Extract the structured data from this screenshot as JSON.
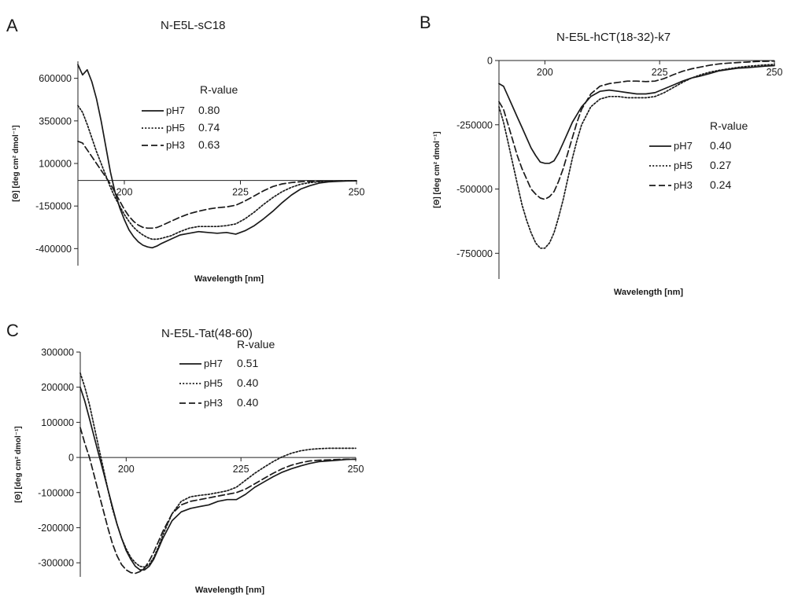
{
  "chart_data": [
    {
      "type": "line",
      "panel_letter": "A",
      "title": "N-E5L-sC18",
      "xlabel": "Wavelength [nm]",
      "ylabel": "[Θ] [deg cm² dmol⁻¹]",
      "xlim": [
        190,
        250
      ],
      "ylim": [
        -500000,
        700000
      ],
      "xticks": [
        200,
        225,
        250
      ],
      "yticks": [
        -400000,
        -150000,
        100000,
        350000,
        600000
      ],
      "ytick_labels": [
        "-400000",
        "-150000",
        "100000",
        "350000",
        "600000"
      ],
      "legend_title": "R-value",
      "series": [
        {
          "name": "pH7",
          "style": "solid",
          "r_value": "0.80",
          "x": [
            190,
            191,
            192,
            193,
            194,
            195,
            196,
            197,
            198,
            199,
            200,
            201,
            202,
            203,
            204,
            205,
            206,
            207,
            208,
            210,
            212,
            214,
            216,
            218,
            220,
            222,
            224,
            226,
            228,
            230,
            232,
            234,
            236,
            238,
            240,
            242,
            244,
            246,
            248,
            250
          ],
          "y": [
            680000,
            620000,
            650000,
            580000,
            480000,
            350000,
            200000,
            50000,
            -70000,
            -160000,
            -230000,
            -290000,
            -330000,
            -360000,
            -380000,
            -390000,
            -395000,
            -385000,
            -370000,
            -345000,
            -320000,
            -310000,
            -300000,
            -305000,
            -310000,
            -305000,
            -315000,
            -295000,
            -265000,
            -225000,
            -180000,
            -130000,
            -85000,
            -50000,
            -30000,
            -15000,
            -8000,
            -5000,
            -3000,
            -2000
          ]
        },
        {
          "name": "pH5",
          "style": "dotted",
          "r_value": "0.74",
          "x": [
            190,
            191,
            192,
            193,
            194,
            195,
            196,
            197,
            198,
            199,
            200,
            201,
            202,
            203,
            204,
            205,
            206,
            207,
            208,
            210,
            212,
            214,
            216,
            218,
            220,
            222,
            224,
            226,
            228,
            230,
            232,
            234,
            236,
            238,
            240,
            242,
            244,
            246,
            248,
            250
          ],
          "y": [
            440000,
            400000,
            330000,
            250000,
            170000,
            100000,
            30000,
            -40000,
            -100000,
            -150000,
            -200000,
            -240000,
            -275000,
            -300000,
            -320000,
            -335000,
            -345000,
            -345000,
            -340000,
            -325000,
            -300000,
            -280000,
            -270000,
            -270000,
            -270000,
            -265000,
            -255000,
            -225000,
            -185000,
            -140000,
            -100000,
            -65000,
            -40000,
            -22000,
            -12000,
            -7000,
            -4000,
            -3000,
            -2000,
            -1500
          ]
        },
        {
          "name": "pH3",
          "style": "dashed",
          "r_value": "0.63",
          "x": [
            190,
            191,
            192,
            193,
            194,
            195,
            196,
            197,
            198,
            199,
            200,
            201,
            202,
            203,
            204,
            205,
            206,
            207,
            208,
            210,
            212,
            214,
            216,
            218,
            220,
            222,
            224,
            226,
            228,
            230,
            232,
            234,
            236,
            238,
            240,
            242,
            244,
            246,
            248,
            250
          ],
          "y": [
            230000,
            220000,
            180000,
            140000,
            100000,
            60000,
            20000,
            -20000,
            -70000,
            -120000,
            -170000,
            -210000,
            -240000,
            -262000,
            -275000,
            -280000,
            -280000,
            -276000,
            -265000,
            -240000,
            -215000,
            -195000,
            -180000,
            -168000,
            -160000,
            -155000,
            -145000,
            -120000,
            -90000,
            -60000,
            -35000,
            -20000,
            -12000,
            -7000,
            -5000,
            -4000,
            -3000,
            -2500,
            -2000,
            -1500
          ]
        }
      ]
    },
    {
      "type": "line",
      "panel_letter": "B",
      "title": "N-E5L-hCT(18-32)-k7",
      "xlabel": "Wavelength [nm]",
      "ylabel": "[Θ] [deg cm² dmol⁻¹]",
      "xlim": [
        190,
        250
      ],
      "ylim": [
        -850000,
        0
      ],
      "xticks": [
        200,
        225,
        250
      ],
      "yticks": [
        0,
        -250000,
        -500000,
        -750000
      ],
      "ytick_labels": [
        "0",
        "-250000",
        "-500000",
        "-750000"
      ],
      "legend_title": "R-value",
      "series": [
        {
          "name": "pH7",
          "style": "solid",
          "r_value": "0.40",
          "x": [
            190,
            191,
            192,
            193,
            194,
            195,
            196,
            197,
            198,
            199,
            200,
            201,
            202,
            203,
            204,
            205,
            206,
            207,
            208,
            210,
            212,
            214,
            216,
            218,
            220,
            222,
            224,
            226,
            228,
            230,
            232,
            234,
            236,
            238,
            240,
            242,
            244,
            246,
            248,
            250
          ],
          "y": [
            -90000,
            -100000,
            -140000,
            -180000,
            -220000,
            -260000,
            -300000,
            -340000,
            -370000,
            -395000,
            -400000,
            -400000,
            -390000,
            -360000,
            -320000,
            -280000,
            -240000,
            -210000,
            -180000,
            -140000,
            -120000,
            -115000,
            -120000,
            -125000,
            -130000,
            -130000,
            -125000,
            -110000,
            -95000,
            -80000,
            -68000,
            -60000,
            -50000,
            -40000,
            -35000,
            -30000,
            -28000,
            -25000,
            -22000,
            -20000
          ]
        },
        {
          "name": "pH5",
          "style": "dotted",
          "r_value": "0.27",
          "x": [
            190,
            191,
            192,
            193,
            194,
            195,
            196,
            197,
            198,
            199,
            200,
            201,
            202,
            203,
            204,
            205,
            206,
            207,
            208,
            210,
            212,
            214,
            216,
            218,
            220,
            222,
            224,
            226,
            228,
            230,
            232,
            234,
            236,
            238,
            240,
            242,
            244,
            246,
            248,
            250
          ],
          "y": [
            -180000,
            -240000,
            -320000,
            -400000,
            -480000,
            -560000,
            -620000,
            -670000,
            -710000,
            -730000,
            -730000,
            -710000,
            -670000,
            -610000,
            -540000,
            -460000,
            -380000,
            -310000,
            -250000,
            -180000,
            -150000,
            -140000,
            -140000,
            -145000,
            -145000,
            -145000,
            -140000,
            -125000,
            -105000,
            -85000,
            -68000,
            -55000,
            -45000,
            -38000,
            -32000,
            -27000,
            -23000,
            -20000,
            -17000,
            -15000
          ]
        },
        {
          "name": "pH3",
          "style": "dashed",
          "r_value": "0.24",
          "x": [
            190,
            191,
            192,
            193,
            194,
            195,
            196,
            197,
            198,
            199,
            200,
            201,
            202,
            203,
            204,
            205,
            206,
            207,
            208,
            210,
            212,
            214,
            216,
            218,
            220,
            222,
            224,
            226,
            228,
            230,
            232,
            234,
            236,
            238,
            240,
            242,
            244,
            246,
            248,
            250
          ],
          "y": [
            -160000,
            -190000,
            -250000,
            -310000,
            -370000,
            -420000,
            -460000,
            -500000,
            -520000,
            -535000,
            -540000,
            -530000,
            -510000,
            -470000,
            -420000,
            -360000,
            -300000,
            -240000,
            -190000,
            -130000,
            -100000,
            -90000,
            -85000,
            -80000,
            -80000,
            -82000,
            -80000,
            -70000,
            -55000,
            -42000,
            -32000,
            -25000,
            -18000,
            -13000,
            -10000,
            -8000,
            -6000,
            -4000,
            -3000,
            -2000
          ]
        }
      ]
    },
    {
      "type": "line",
      "panel_letter": "C",
      "title": "N-E5L-Tat(48-60)",
      "xlabel": "Wavelength [nm]",
      "ylabel": "[Θ] [deg cm² dmol⁻¹]",
      "xlim": [
        190,
        250
      ],
      "ylim": [
        -340000,
        300000
      ],
      "xticks": [
        200,
        225,
        250
      ],
      "yticks": [
        300000,
        200000,
        100000,
        0,
        -100000,
        -200000,
        -300000
      ],
      "ytick_labels": [
        "300000",
        "200000",
        "100000",
        "0",
        "-100000",
        "-200000",
        "-300000"
      ],
      "legend_title": "R-value",
      "series": [
        {
          "name": "pH7",
          "style": "solid",
          "r_value": "0.51",
          "x": [
            190,
            191,
            192,
            193,
            194,
            195,
            196,
            197,
            198,
            199,
            200,
            201,
            202,
            203,
            204,
            205,
            206,
            207,
            208,
            210,
            212,
            214,
            216,
            218,
            220,
            222,
            224,
            226,
            228,
            230,
            232,
            234,
            236,
            238,
            240,
            242,
            244,
            246,
            248,
            250
          ],
          "y": [
            200000,
            160000,
            110000,
            60000,
            10000,
            -40000,
            -90000,
            -140000,
            -190000,
            -230000,
            -265000,
            -290000,
            -310000,
            -320000,
            -320000,
            -310000,
            -290000,
            -260000,
            -230000,
            -180000,
            -155000,
            -145000,
            -140000,
            -135000,
            -125000,
            -120000,
            -120000,
            -105000,
            -85000,
            -70000,
            -55000,
            -42000,
            -32000,
            -24000,
            -17000,
            -12000,
            -10000,
            -8000,
            -6000,
            -5000
          ]
        },
        {
          "name": "pH5",
          "style": "dotted",
          "r_value": "0.40",
          "x": [
            190,
            191,
            192,
            193,
            194,
            195,
            196,
            197,
            198,
            199,
            200,
            201,
            202,
            203,
            204,
            205,
            206,
            207,
            208,
            210,
            212,
            214,
            216,
            218,
            220,
            222,
            224,
            226,
            228,
            230,
            232,
            234,
            236,
            238,
            240,
            242,
            244,
            246,
            248,
            250
          ],
          "y": [
            240000,
            200000,
            150000,
            90000,
            30000,
            -30000,
            -90000,
            -145000,
            -190000,
            -230000,
            -260000,
            -285000,
            -300000,
            -310000,
            -312000,
            -305000,
            -285000,
            -255000,
            -220000,
            -160000,
            -125000,
            -112000,
            -108000,
            -105000,
            -100000,
            -95000,
            -85000,
            -65000,
            -45000,
            -28000,
            -12000,
            2000,
            12000,
            19000,
            23000,
            25000,
            26000,
            26000,
            26000,
            26000
          ]
        },
        {
          "name": "pH3",
          "style": "dashed",
          "r_value": "0.40",
          "x": [
            190,
            191,
            192,
            193,
            194,
            195,
            196,
            197,
            198,
            199,
            200,
            201,
            202,
            203,
            204,
            205,
            206,
            207,
            208,
            210,
            212,
            214,
            216,
            218,
            220,
            222,
            224,
            226,
            228,
            230,
            232,
            234,
            236,
            238,
            240,
            242,
            244,
            246,
            248,
            250
          ],
          "y": [
            85000,
            40000,
            0,
            -50000,
            -100000,
            -150000,
            -200000,
            -245000,
            -280000,
            -305000,
            -320000,
            -328000,
            -330000,
            -325000,
            -315000,
            -295000,
            -270000,
            -240000,
            -210000,
            -160000,
            -135000,
            -125000,
            -120000,
            -115000,
            -110000,
            -105000,
            -100000,
            -90000,
            -75000,
            -60000,
            -45000,
            -32000,
            -22000,
            -15000,
            -10000,
            -8000,
            -7000,
            -6000,
            -5000,
            -5000
          ]
        }
      ]
    }
  ]
}
